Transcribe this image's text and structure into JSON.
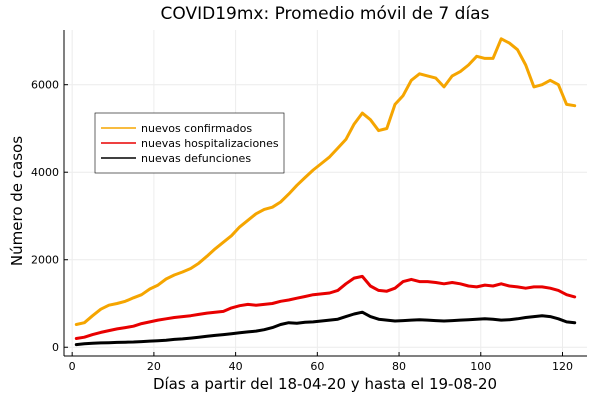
{
  "chart_data": {
    "type": "line",
    "title": "COVID19mx: Promedio móvil de 7 días",
    "xlabel": "Días a partir del 18-04-20 y hasta el 19-08-20",
    "ylabel": "Número de casos",
    "xlim": [
      -2,
      126
    ],
    "ylim": [
      -200,
      7250
    ],
    "xticks": [
      0,
      20,
      40,
      60,
      80,
      100,
      120
    ],
    "yticks": [
      0,
      2000,
      4000,
      6000
    ],
    "grid": true,
    "legend_position": "upper-left",
    "series": [
      {
        "name": "nuevos confirmados",
        "color": "#f5a500",
        "points": [
          [
            1,
            520
          ],
          [
            3,
            560
          ],
          [
            5,
            720
          ],
          [
            7,
            870
          ],
          [
            9,
            960
          ],
          [
            11,
            1000
          ],
          [
            13,
            1050
          ],
          [
            15,
            1130
          ],
          [
            17,
            1200
          ],
          [
            19,
            1330
          ],
          [
            21,
            1420
          ],
          [
            23,
            1560
          ],
          [
            25,
            1650
          ],
          [
            27,
            1720
          ],
          [
            29,
            1800
          ],
          [
            31,
            1920
          ],
          [
            33,
            2080
          ],
          [
            35,
            2250
          ],
          [
            37,
            2400
          ],
          [
            39,
            2550
          ],
          [
            41,
            2750
          ],
          [
            43,
            2900
          ],
          [
            45,
            3050
          ],
          [
            47,
            3150
          ],
          [
            49,
            3200
          ],
          [
            51,
            3320
          ],
          [
            53,
            3500
          ],
          [
            55,
            3700
          ],
          [
            57,
            3880
          ],
          [
            59,
            4050
          ],
          [
            61,
            4200
          ],
          [
            63,
            4350
          ],
          [
            65,
            4550
          ],
          [
            67,
            4750
          ],
          [
            69,
            5100
          ],
          [
            71,
            5350
          ],
          [
            73,
            5200
          ],
          [
            75,
            4950
          ],
          [
            77,
            5000
          ],
          [
            79,
            5550
          ],
          [
            81,
            5750
          ],
          [
            83,
            6100
          ],
          [
            85,
            6250
          ],
          [
            87,
            6200
          ],
          [
            89,
            6150
          ],
          [
            91,
            5950
          ],
          [
            93,
            6200
          ],
          [
            95,
            6300
          ],
          [
            97,
            6450
          ],
          [
            99,
            6650
          ],
          [
            101,
            6600
          ],
          [
            103,
            6600
          ],
          [
            105,
            7050
          ],
          [
            107,
            6950
          ],
          [
            109,
            6800
          ],
          [
            111,
            6450
          ],
          [
            113,
            5950
          ],
          [
            115,
            6000
          ],
          [
            117,
            6100
          ],
          [
            119,
            6000
          ],
          [
            121,
            5550
          ],
          [
            123,
            5520
          ]
        ]
      },
      {
        "name": "nuevas hospitalizaciones",
        "color": "#e80000",
        "points": [
          [
            1,
            200
          ],
          [
            3,
            230
          ],
          [
            5,
            290
          ],
          [
            7,
            340
          ],
          [
            9,
            380
          ],
          [
            11,
            420
          ],
          [
            13,
            450
          ],
          [
            15,
            480
          ],
          [
            17,
            540
          ],
          [
            19,
            580
          ],
          [
            21,
            620
          ],
          [
            23,
            650
          ],
          [
            25,
            680
          ],
          [
            27,
            700
          ],
          [
            29,
            720
          ],
          [
            31,
            750
          ],
          [
            33,
            780
          ],
          [
            35,
            800
          ],
          [
            37,
            820
          ],
          [
            39,
            900
          ],
          [
            41,
            950
          ],
          [
            43,
            980
          ],
          [
            45,
            960
          ],
          [
            47,
            980
          ],
          [
            49,
            1000
          ],
          [
            51,
            1050
          ],
          [
            53,
            1080
          ],
          [
            55,
            1120
          ],
          [
            57,
            1160
          ],
          [
            59,
            1200
          ],
          [
            61,
            1220
          ],
          [
            63,
            1240
          ],
          [
            65,
            1300
          ],
          [
            67,
            1450
          ],
          [
            69,
            1580
          ],
          [
            71,
            1620
          ],
          [
            73,
            1400
          ],
          [
            75,
            1300
          ],
          [
            77,
            1280
          ],
          [
            79,
            1350
          ],
          [
            81,
            1500
          ],
          [
            83,
            1550
          ],
          [
            85,
            1500
          ],
          [
            87,
            1500
          ],
          [
            89,
            1480
          ],
          [
            91,
            1450
          ],
          [
            93,
            1480
          ],
          [
            95,
            1450
          ],
          [
            97,
            1400
          ],
          [
            99,
            1380
          ],
          [
            101,
            1420
          ],
          [
            103,
            1400
          ],
          [
            105,
            1450
          ],
          [
            107,
            1400
          ],
          [
            109,
            1380
          ],
          [
            111,
            1350
          ],
          [
            113,
            1380
          ],
          [
            115,
            1380
          ],
          [
            117,
            1350
          ],
          [
            119,
            1300
          ],
          [
            121,
            1200
          ],
          [
            123,
            1150
          ]
        ]
      },
      {
        "name": "nuevas defunciones",
        "color": "#000000",
        "points": [
          [
            1,
            60
          ],
          [
            3,
            80
          ],
          [
            5,
            90
          ],
          [
            7,
            100
          ],
          [
            9,
            105
          ],
          [
            11,
            110
          ],
          [
            13,
            115
          ],
          [
            15,
            120
          ],
          [
            17,
            130
          ],
          [
            19,
            140
          ],
          [
            21,
            150
          ],
          [
            23,
            160
          ],
          [
            25,
            180
          ],
          [
            27,
            190
          ],
          [
            29,
            210
          ],
          [
            31,
            230
          ],
          [
            33,
            250
          ],
          [
            35,
            270
          ],
          [
            37,
            290
          ],
          [
            39,
            310
          ],
          [
            41,
            330
          ],
          [
            43,
            350
          ],
          [
            45,
            370
          ],
          [
            47,
            400
          ],
          [
            49,
            450
          ],
          [
            51,
            520
          ],
          [
            53,
            560
          ],
          [
            55,
            550
          ],
          [
            57,
            570
          ],
          [
            59,
            580
          ],
          [
            61,
            600
          ],
          [
            63,
            620
          ],
          [
            65,
            640
          ],
          [
            67,
            700
          ],
          [
            69,
            760
          ],
          [
            71,
            800
          ],
          [
            73,
            700
          ],
          [
            75,
            640
          ],
          [
            77,
            620
          ],
          [
            79,
            600
          ],
          [
            81,
            610
          ],
          [
            83,
            620
          ],
          [
            85,
            630
          ],
          [
            87,
            620
          ],
          [
            89,
            610
          ],
          [
            91,
            600
          ],
          [
            93,
            610
          ],
          [
            95,
            620
          ],
          [
            97,
            630
          ],
          [
            99,
            640
          ],
          [
            101,
            650
          ],
          [
            103,
            640
          ],
          [
            105,
            620
          ],
          [
            107,
            630
          ],
          [
            109,
            650
          ],
          [
            111,
            680
          ],
          [
            113,
            700
          ],
          [
            115,
            720
          ],
          [
            117,
            700
          ],
          [
            119,
            650
          ],
          [
            121,
            580
          ],
          [
            123,
            560
          ]
        ]
      }
    ]
  }
}
